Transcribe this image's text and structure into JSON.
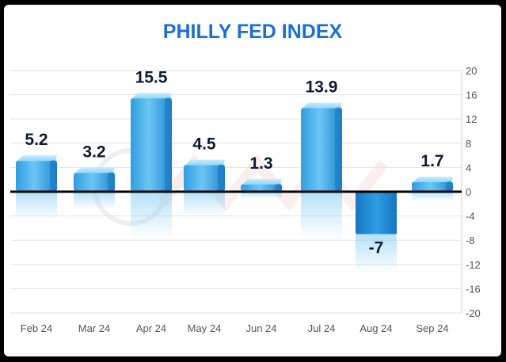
{
  "chart_data": {
    "type": "bar",
    "title": "PHILLY FED INDEX",
    "categories": [
      "Feb 24",
      "Mar 24",
      "Apr 24",
      "May 24",
      "Jun 24",
      "Jul 24",
      "Aug 24",
      "Sep 24"
    ],
    "values": [
      5.2,
      3.2,
      15.5,
      4.5,
      1.3,
      13.9,
      -7,
      1.7
    ],
    "value_labels": [
      "5.2",
      "3.2",
      "15.5",
      "4.5",
      "1.3",
      "13.9",
      "-7",
      "1.7"
    ],
    "ylim": [
      -20,
      20
    ],
    "yticks": [
      20,
      16,
      12,
      8,
      4,
      0,
      -4,
      -8,
      -12,
      -16,
      -20
    ],
    "ytick_labels": [
      "20",
      "16",
      "12",
      "8",
      "4",
      "0",
      "-4",
      "-8",
      "-12",
      "-16",
      "-20"
    ],
    "y_axis_side": "right",
    "grid": true,
    "xlabel": "",
    "ylabel": "",
    "colors": {
      "title": "#1a6fd6",
      "bar_top": "#8fd6fa",
      "bar_mid": "#3aa8e6",
      "bar_dark": "#1477bd",
      "grid": "#e2e2e2",
      "zero_line": "#000000",
      "tick_text": "#555555",
      "label_text": "#0e1a30"
    }
  }
}
